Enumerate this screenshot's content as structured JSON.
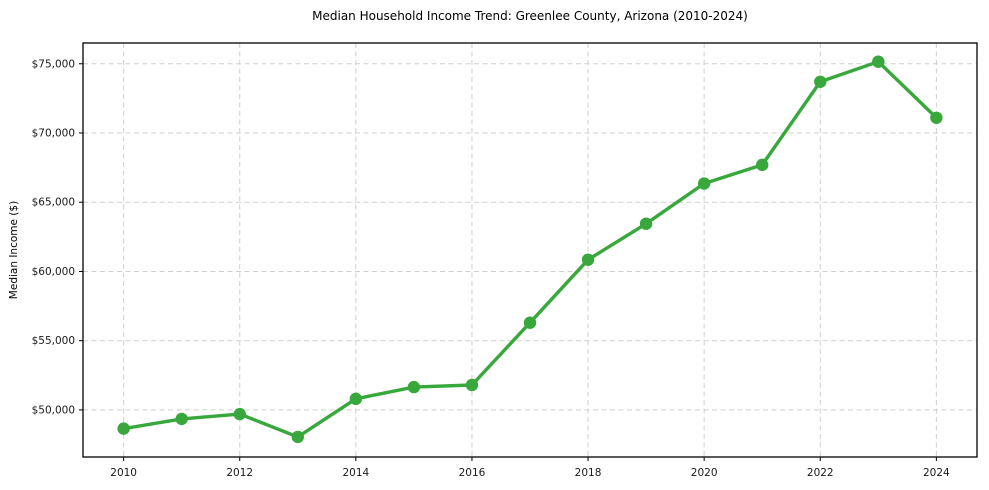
{
  "chart_data": {
    "type": "line",
    "title": "Median Household Income Trend: Greenlee County, Arizona (2010-2024)",
    "xlabel": "",
    "ylabel": "Median Income ($)",
    "series": [
      {
        "name": "Median household income",
        "x": [
          2010,
          2011,
          2012,
          2013,
          2014,
          2015,
          2016,
          2017,
          2018,
          2019,
          2020,
          2021,
          2022,
          2023,
          2024
        ],
        "y": [
          48650,
          49350,
          49700,
          48050,
          50800,
          51650,
          51800,
          56300,
          60850,
          63450,
          66350,
          67700,
          73700,
          75150,
          71100
        ]
      }
    ],
    "xticks": [
      2010,
      2012,
      2014,
      2016,
      2018,
      2020,
      2022,
      2024
    ],
    "xtick_labels": [
      "2010",
      "2012",
      "2014",
      "2016",
      "2018",
      "2020",
      "2022",
      "2024"
    ],
    "yticks": [
      50000,
      55000,
      60000,
      65000,
      70000,
      75000
    ],
    "ytick_labels": [
      "$50,000",
      "$55,000",
      "$60,000",
      "$65,000",
      "$70,000",
      "$75,000"
    ],
    "xlim": [
      2009.3,
      2024.7
    ],
    "ylim": [
      46600,
      76500
    ],
    "grid": true,
    "grid_style": "dashed",
    "legend_position": "none",
    "colors": {
      "line": "#38a83c",
      "marker": "#38a83c",
      "grid": "#cfcfcf",
      "spine": "#000000",
      "tick_text": "#1a1a1a",
      "background": "#ffffff"
    },
    "marker": "circle",
    "marker_radius": 6.2,
    "line_width": 3.4
  }
}
